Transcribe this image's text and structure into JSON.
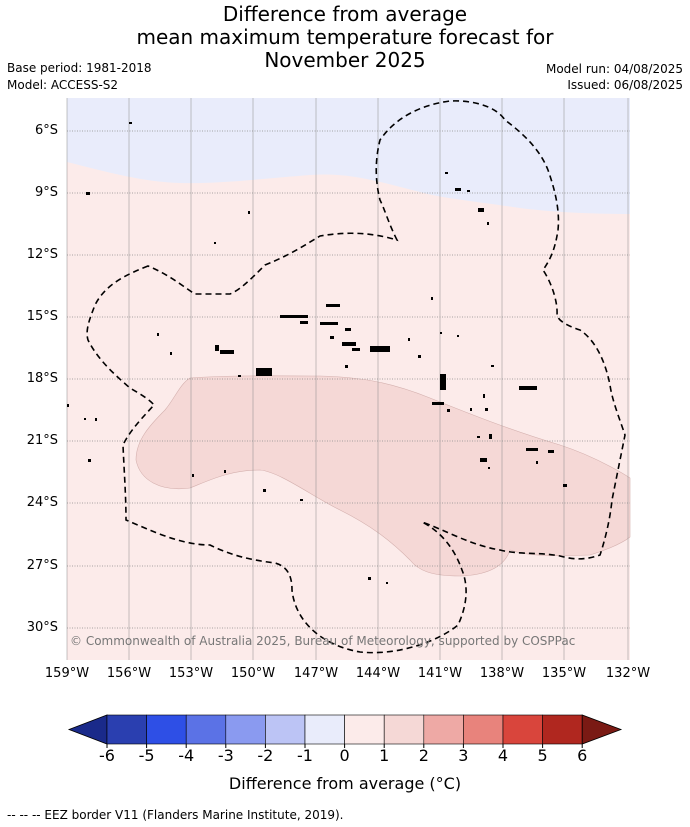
{
  "header": {
    "title_line1": "Difference from average",
    "title_line2": "mean maximum temperature forecast for",
    "title_line3": "November 2025",
    "base_period": "Base period: 1981-2018",
    "model": "Model: ACCESS-S2",
    "model_run": "Model run: 04/08/2025",
    "issued": "Issued: 06/08/2025"
  },
  "map": {
    "lat_labels": [
      "6°S",
      "9°S",
      "12°S",
      "15°S",
      "18°S",
      "21°S",
      "24°S",
      "27°S",
      "30°S"
    ],
    "lon_labels": [
      "159°W",
      "156°W",
      "153°W",
      "150°W",
      "147°W",
      "144°W",
      "141°W",
      "138°W",
      "135°W",
      "132°W"
    ],
    "copyright": "© Commonwealth of Australia 2025, Bureau of Meteorology, supported by COSPPac",
    "colors": {
      "band_minus1_0": "#e9ecfb",
      "band_0_1": "#fcebea",
      "band_1_2": "#f5d8d6",
      "graticule": "#8a8a8a",
      "eez_border": "#000000"
    }
  },
  "colorbar": {
    "ticks": [
      "-6",
      "-5",
      "-4",
      "-3",
      "-2",
      "-1",
      "0",
      "1",
      "2",
      "3",
      "4",
      "5",
      "6"
    ],
    "colors": [
      "#1a2a8a",
      "#2a3fb0",
      "#2e4fe6",
      "#5b72e6",
      "#8a9af0",
      "#bcc4f5",
      "#e9ecfb",
      "#fcebea",
      "#f5d8d6",
      "#eea9a5",
      "#e8837c",
      "#d9453c",
      "#b0271f",
      "#7a1a14"
    ],
    "label": "Difference from average (°C)"
  },
  "legend_note": "--  --  -- EEZ border V11 (Flanders Marine Institute, 2019)."
}
